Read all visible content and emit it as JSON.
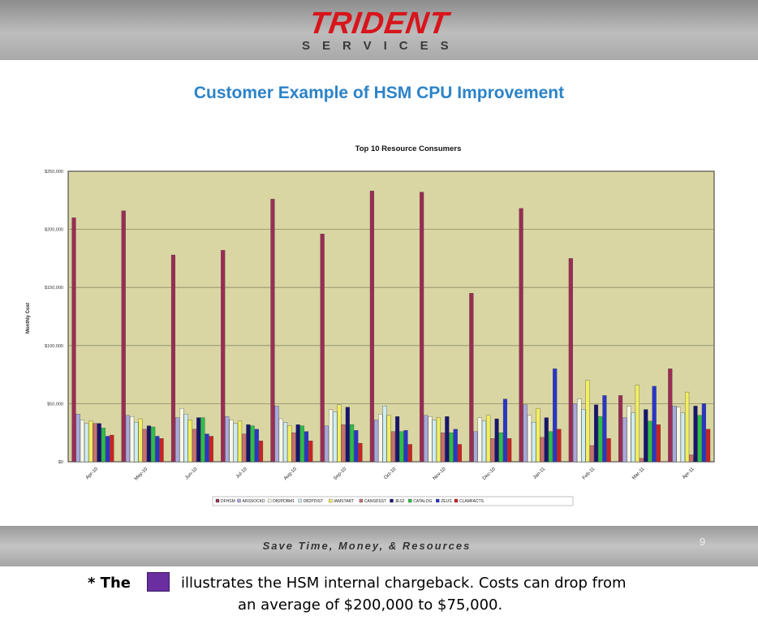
{
  "logo": {
    "main": "TRIDENT",
    "sub": "SERVICES"
  },
  "slide_title": "Customer Example of HSM CPU Improvement",
  "footer": {
    "tagline": "Save Time, Money, & Resources",
    "page_number": "9"
  },
  "note": {
    "prefix": "* The",
    "line1": "illustrates the HSM internal chargeback. Costs can drop from",
    "line2": "an average of $200,000 to $75,000.",
    "swatch_color": "#6a2ea0"
  },
  "chart_data": {
    "type": "bar",
    "title": "Top 10 Resource Consumers",
    "ylabel": "Monthly Cost",
    "xlabel": "",
    "ylim": [
      0,
      250000
    ],
    "yticks": [
      0,
      50000,
      100000,
      150000,
      200000,
      250000
    ],
    "ytick_labels": [
      "$0",
      "$50,000",
      "$100,000",
      "$150,000",
      "$200,000",
      "$250,000"
    ],
    "grid": true,
    "legend_position": "bottom",
    "categories": [
      "Apr-10",
      "May-10",
      "Jun-10",
      "Jul-10",
      "Aug-10",
      "Sep-10",
      "Oct-10",
      "Nov-10",
      "Dec-10",
      "Jan-11",
      "Feb-11",
      "Mar-11",
      "Apr-11"
    ],
    "series": [
      {
        "name": "DFHSM",
        "color": "#9b2d55",
        "values": [
          210000,
          216000,
          178000,
          182000,
          226000,
          196000,
          233000,
          232000,
          145000,
          218000,
          175000,
          57000,
          80000
        ]
      },
      {
        "name": "ARSSOCKD",
        "color": "#a9a9dc",
        "values": [
          41000,
          40000,
          38000,
          39000,
          48000,
          31000,
          36000,
          40000,
          26000,
          49000,
          50000,
          38000,
          48000
        ]
      },
      {
        "name": "DB2PDBM1",
        "color": "#f7f7e6",
        "values": [
          36000,
          39000,
          46000,
          36000,
          37000,
          45000,
          41000,
          39000,
          38000,
          40000,
          54000,
          48000,
          47000
        ]
      },
      {
        "name": "DB2PDIST",
        "color": "#cdebf2",
        "values": [
          33000,
          34000,
          41000,
          33000,
          34000,
          43000,
          48000,
          36000,
          35000,
          34000,
          45000,
          42000,
          42000
        ]
      },
      {
        "name": "IAMSTART",
        "color": "#f2ee62",
        "values": [
          35000,
          37000,
          36000,
          35000,
          31000,
          49000,
          40000,
          38000,
          40000,
          46000,
          70000,
          66000,
          60000
        ]
      },
      {
        "name": "CANSDSST",
        "color": "#c87070",
        "values": [
          33000,
          28000,
          28000,
          24000,
          25000,
          32000,
          26000,
          25000,
          20000,
          21000,
          14000,
          3000,
          6000
        ]
      },
      {
        "name": "JES2",
        "color": "#16166e",
        "values": [
          33000,
          31000,
          38000,
          32000,
          32000,
          47000,
          39000,
          39000,
          37000,
          38000,
          49000,
          45000,
          48000
        ]
      },
      {
        "name": "CATALOG",
        "color": "#2bbf4a",
        "values": [
          29000,
          30000,
          38000,
          31000,
          31000,
          32000,
          26000,
          25000,
          25000,
          26000,
          39000,
          35000,
          40000
        ]
      },
      {
        "name": "ZEUS",
        "color": "#2a35c9",
        "values": [
          22000,
          22000,
          24000,
          28000,
          26000,
          27000,
          27000,
          28000,
          54000,
          80000,
          57000,
          65000,
          50000
        ]
      },
      {
        "name": "CLAMFACTS",
        "color": "#cc2222",
        "values": [
          23000,
          20000,
          22000,
          18000,
          18000,
          16000,
          15000,
          15000,
          20000,
          28000,
          20000,
          32000,
          28000
        ]
      }
    ]
  }
}
